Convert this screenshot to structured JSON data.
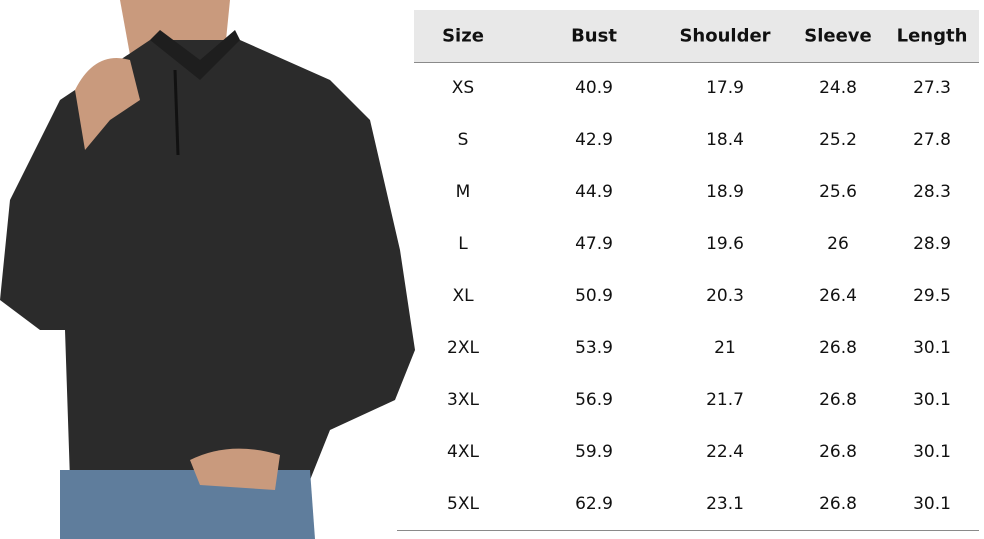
{
  "product_image": {
    "description_icon": "sweater-model-photo",
    "color": "#2a2a2a"
  },
  "size_chart": {
    "headers": [
      "Size",
      "Bust",
      "Shoulder",
      "Sleeve",
      "Length"
    ],
    "rows": [
      [
        "XS",
        "40.9",
        "17.9",
        "24.8",
        "27.3"
      ],
      [
        "S",
        "42.9",
        "18.4",
        "25.2",
        "27.8"
      ],
      [
        "M",
        "44.9",
        "18.9",
        "25.6",
        "28.3"
      ],
      [
        "L",
        "47.9",
        "19.6",
        "26",
        "28.9"
      ],
      [
        "XL",
        "50.9",
        "20.3",
        "26.4",
        "29.5"
      ],
      [
        "2XL",
        "53.9",
        "21",
        "26.8",
        "30.1"
      ],
      [
        "3XL",
        "56.9",
        "21.7",
        "26.8",
        "30.1"
      ],
      [
        "4XL",
        "59.9",
        "22.4",
        "26.8",
        "30.1"
      ],
      [
        "5XL",
        "62.9",
        "23.1",
        "26.8",
        "30.1"
      ]
    ]
  }
}
